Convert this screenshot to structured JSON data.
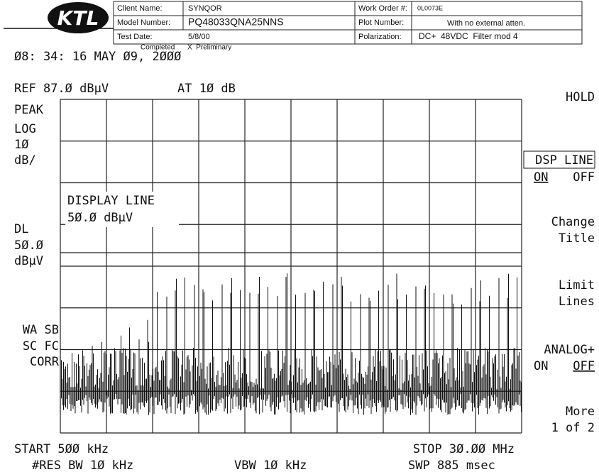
{
  "header": {
    "logo": "KTL",
    "fields": [
      {
        "label": "Client Name:",
        "value": "SYNQOR"
      },
      {
        "label": "Model Number:",
        "value": "PQ48033QNA25NNS"
      },
      {
        "label": "Test Date:",
        "value": "5/8/00"
      },
      {
        "label": "Work Order #:",
        "value": "0L0073E"
      },
      {
        "label": "Plot Number:",
        "value": "With no external atten."
      },
      {
        "label": "Polarization:",
        "value": "DC+  48VDC  Filter mod 4"
      }
    ],
    "status_completed": "Completed",
    "status_preliminary": "X  Preliminary"
  },
  "analyzer": {
    "timestamp": "Ø8: 34: 16 MAY Ø9, 2ØØØ",
    "ref": "REF 87.Ø dBµV",
    "atten": "AT 1Ø dB",
    "left_labels": [
      "PEAK",
      "LOG",
      "1Ø",
      "dB/",
      "DL",
      "5Ø.Ø",
      "dBµV",
      "WA SB",
      "SC FC",
      "CORR"
    ],
    "display_line_title": "DISPLAY LINE",
    "display_line_value": "5Ø.Ø dBµV",
    "start": "START 5ØØ kHz",
    "stop": "STOP 3Ø.ØØ MHz",
    "res_bw": "#RES BW 1Ø kHz",
    "vbw": "VBW 1Ø kHz",
    "sweep": "SWP 885 msec"
  },
  "softkeys": {
    "hold": "HOLD",
    "dsp_line": "DSP LINE",
    "dsp_on": "ON",
    "dsp_off": "OFF",
    "change": "Change",
    "title": "Title",
    "limit": "Limit",
    "lines": "Lines",
    "analog": "ANALOG+",
    "analog_on": "ON",
    "analog_off": "OFF",
    "more": "More",
    "page": "1 of 2"
  }
}
